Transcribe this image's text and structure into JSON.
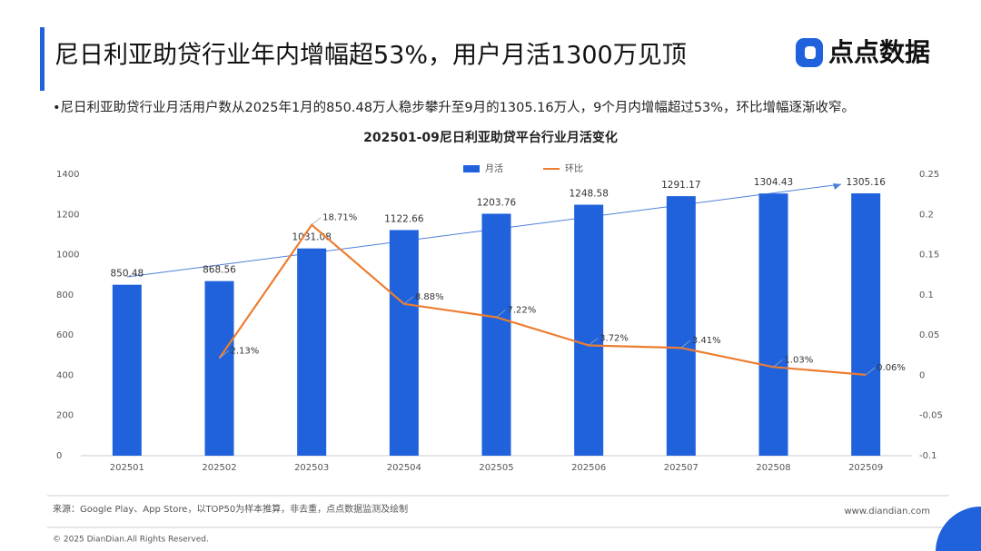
{
  "header": {
    "title": "尼日利亚助贷行业年内增幅超53%，用户月活1300万见顶",
    "logo": "点点数据",
    "bullet": "•尼日利亚助贷行业月活用户数从2025年1月的850.48万人稳步攀升至9月的1305.16万人，9个月内增幅超过53%，环比增幅逐渐收窄。"
  },
  "chart_data": {
    "type": "bar",
    "title": "202501-09尼日利亚助贷平台行业月活变化",
    "categories": [
      "202501",
      "202502",
      "202503",
      "202504",
      "202505",
      "202506",
      "202507",
      "202508",
      "202509"
    ],
    "series": [
      {
        "name": "月活",
        "type": "bar",
        "color": "#1f62dc",
        "values": [
          850.48,
          868.56,
          1031.08,
          1122.66,
          1203.76,
          1248.58,
          1291.17,
          1304.43,
          1305.16
        ]
      },
      {
        "name": "环比",
        "type": "line",
        "axis": "y2",
        "color": "#ed7d31",
        "values": [
          null,
          0.0213,
          0.1871,
          0.0888,
          0.0722,
          0.0372,
          0.0341,
          0.0103,
          0.0006
        ],
        "value_labels": [
          null,
          "2.13%",
          "18.71%",
          "8.88%",
          "7.22%",
          "3.72%",
          "3.41%",
          "1.03%",
          "0.06%"
        ]
      }
    ],
    "ylim": [
      0,
      1400
    ],
    "yticks": [
      0,
      200,
      400,
      600,
      800,
      1000,
      1200,
      1400
    ],
    "y2lim": [
      -0.1,
      0.25
    ],
    "y2ticks": [
      -0.1,
      -0.05,
      0,
      0.05,
      0.1,
      0.15,
      0.2,
      0.25
    ],
    "legend": "top"
  },
  "footer": {
    "source": "来源：Google Play、App Store，以TOP50为样本推算，非去重，点点数据监测及绘制",
    "website": "www.diandian.com",
    "copyright": "© 2025 DianDian.All Rights Reserved."
  }
}
